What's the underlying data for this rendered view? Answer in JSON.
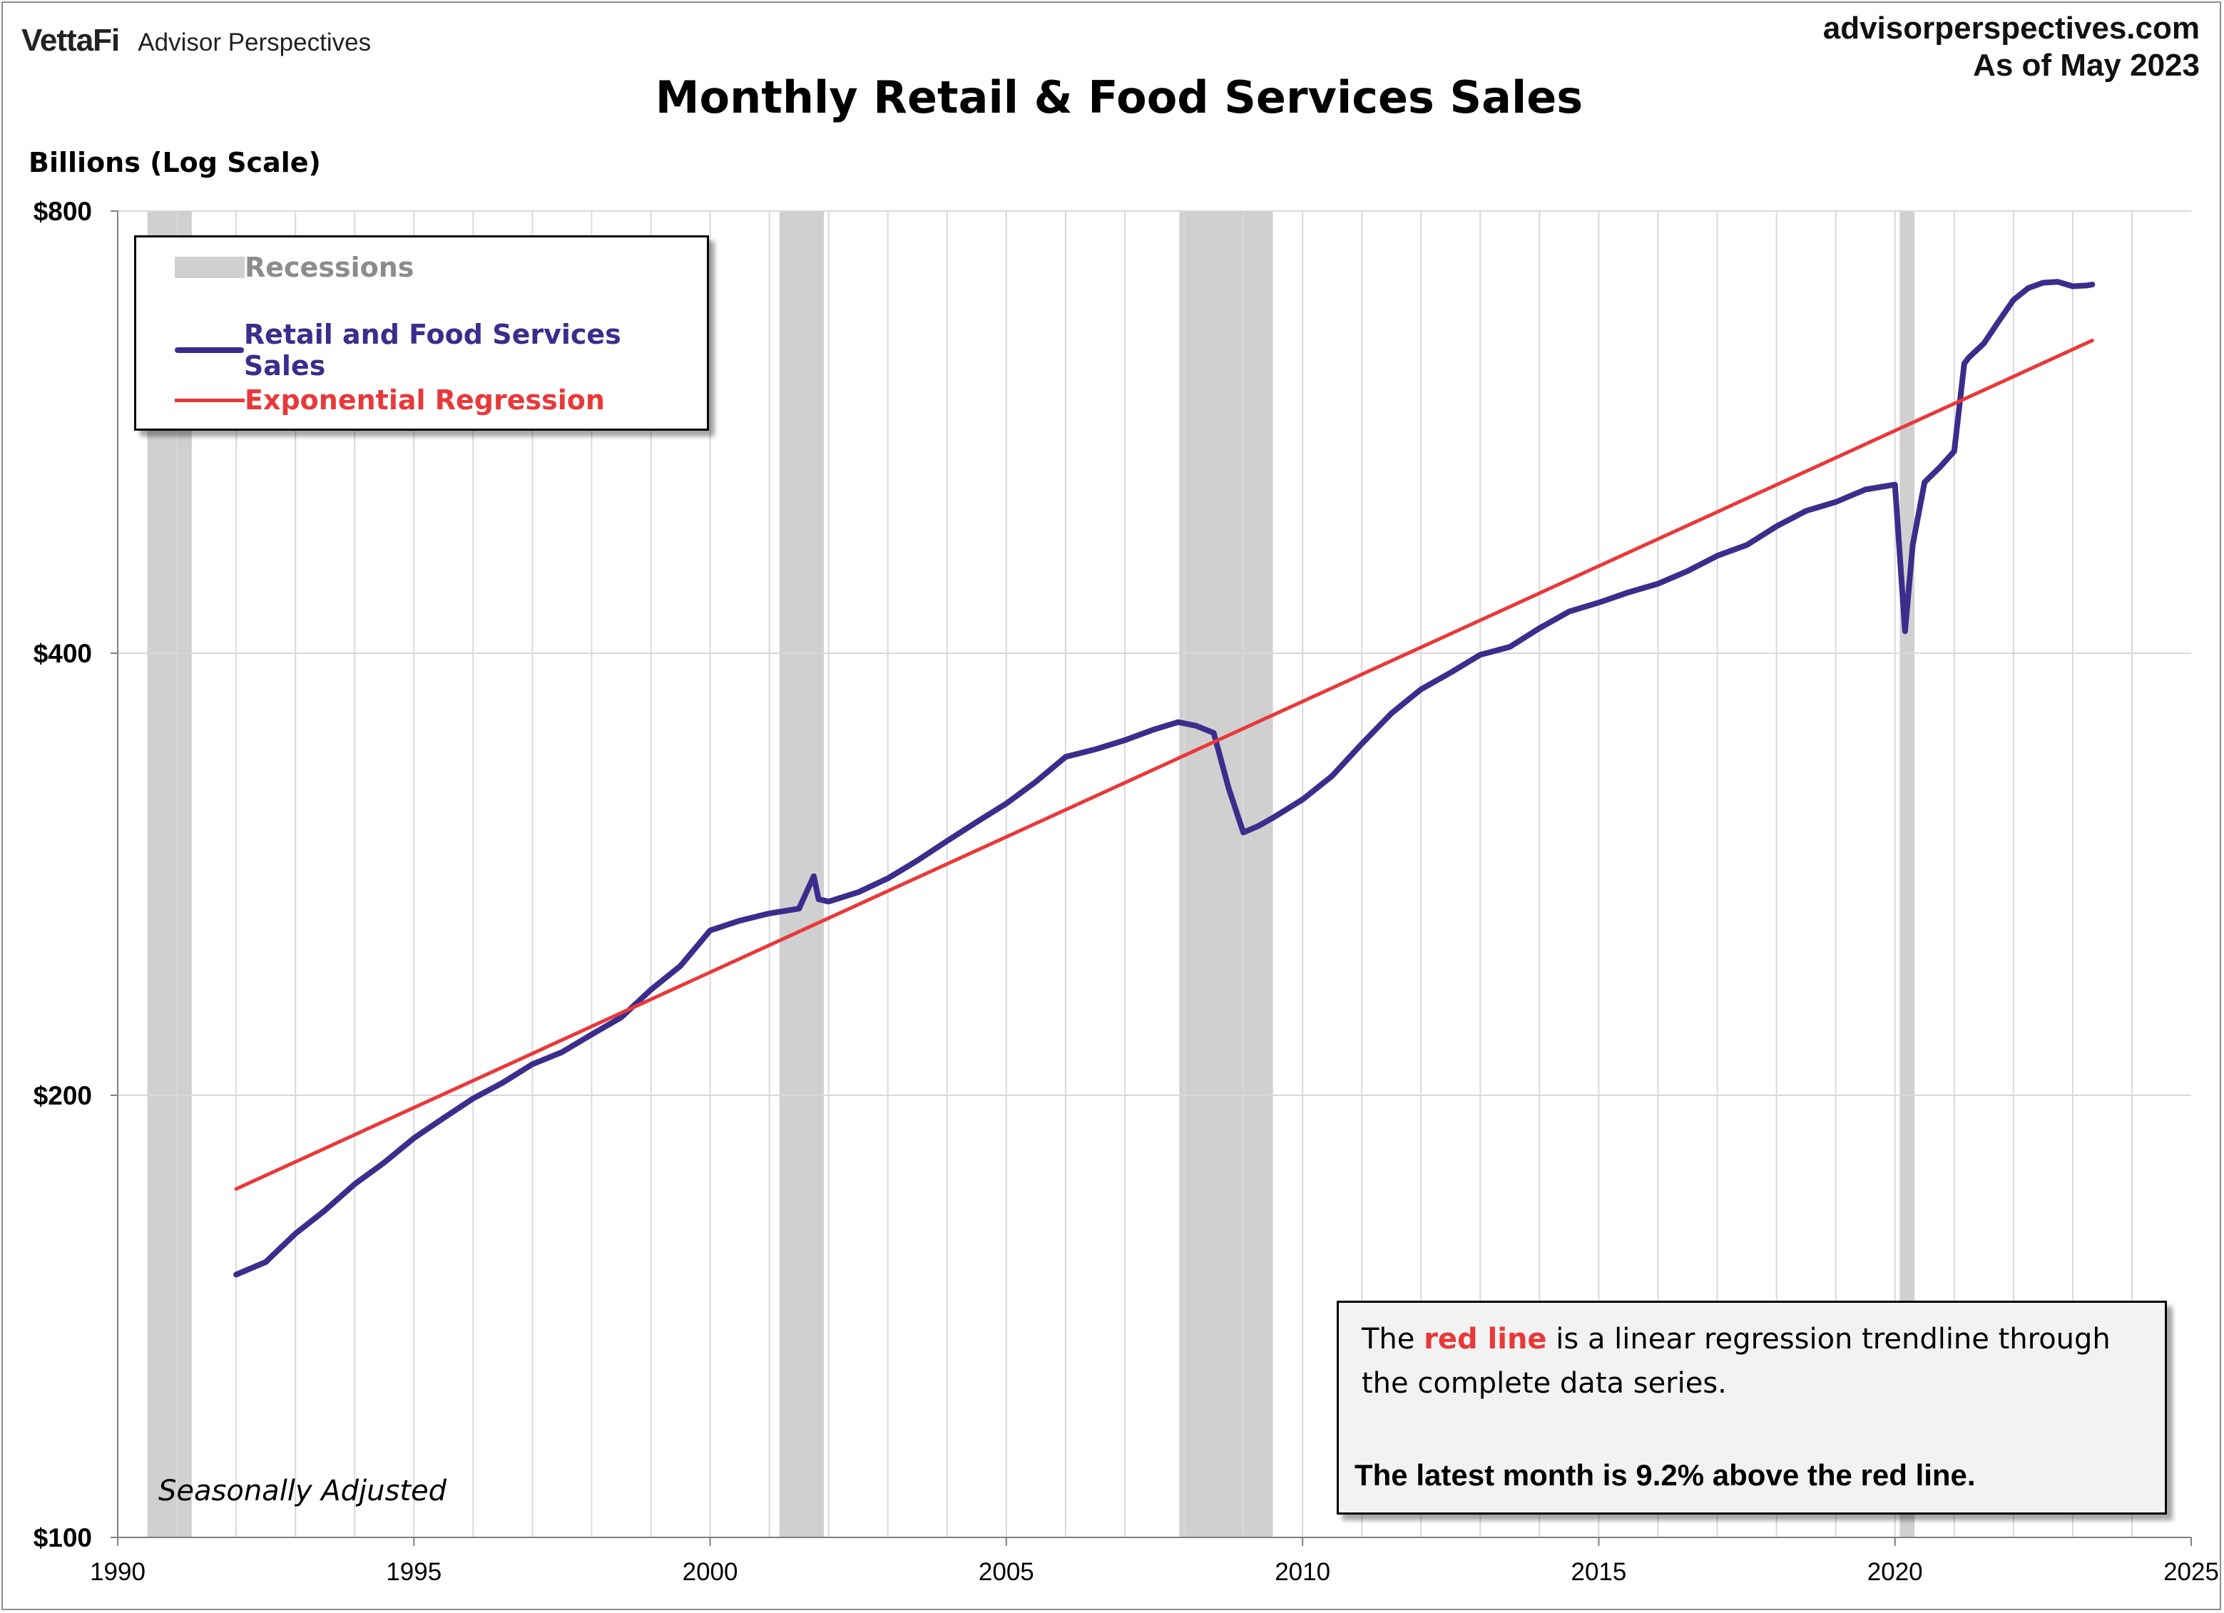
{
  "header": {
    "brand": "VettaFi",
    "brand_sub": "Advisor Perspectives",
    "site": "advisorperspectives.com",
    "as_of": "As of May 2023"
  },
  "colors": {
    "series": "#3a2d8c",
    "trend": "#e8393a",
    "recession": "#d0d0d0",
    "grid": "#d9d9d9"
  },
  "notes": {
    "seasonal": "Seasonally Adjusted",
    "box_part1": "The ",
    "box_red": "red line",
    "box_part2": " is a linear regression trendline  through the complete data series.",
    "box_latest": "The latest month is 9.2% above the red line."
  },
  "chart_data": {
    "type": "line",
    "title": "Monthly Retail & Food Services Sales",
    "ylabel": "Billions (Log Scale)",
    "xlabel": "",
    "y_scale": "log",
    "xlim": [
      1990,
      2025
    ],
    "ylim": [
      100,
      800
    ],
    "x_ticks": [
      1990,
      1995,
      2000,
      2005,
      2010,
      2015,
      2020,
      2025
    ],
    "y_ticks": [
      {
        "value": 800,
        "label": "$800"
      },
      {
        "value": 400,
        "label": "$400"
      },
      {
        "value": 200,
        "label": "$200"
      },
      {
        "value": 100,
        "label": "$100"
      }
    ],
    "grid": true,
    "legend_position": "top-left",
    "legend": [
      "Recessions",
      "Retail and Food Services Sales",
      "Exponential Regression"
    ],
    "recessions": [
      [
        1990.5,
        1991.25
      ],
      [
        2001.17,
        2001.92
      ],
      [
        2007.92,
        2009.5
      ],
      [
        2020.08,
        2020.33
      ]
    ],
    "series": [
      {
        "name": "Retail and Food Services Sales",
        "x": [
          1992.0,
          1992.5,
          1993.0,
          1993.5,
          1994.0,
          1994.5,
          1995.0,
          1995.5,
          1996.0,
          1996.5,
          1997.0,
          1997.5,
          1998.0,
          1998.5,
          1999.0,
          1999.5,
          2000.0,
          2000.5,
          2001.0,
          2001.5,
          2001.75,
          2001.83,
          2002.0,
          2002.5,
          2003.0,
          2003.5,
          2004.0,
          2004.5,
          2005.0,
          2005.5,
          2006.0,
          2006.5,
          2007.0,
          2007.5,
          2007.9,
          2008.2,
          2008.5,
          2008.75,
          2009.0,
          2009.25,
          2009.5,
          2010.0,
          2010.5,
          2011.0,
          2011.5,
          2012.0,
          2012.5,
          2013.0,
          2013.5,
          2014.0,
          2014.5,
          2015.0,
          2015.5,
          2016.0,
          2016.5,
          2017.0,
          2017.5,
          2018.0,
          2018.5,
          2019.0,
          2019.5,
          2020.0,
          2020.17,
          2020.3,
          2020.5,
          2020.75,
          2021.0,
          2021.17,
          2021.25,
          2021.5,
          2021.75,
          2022.0,
          2022.25,
          2022.5,
          2022.75,
          2023.0,
          2023.25,
          2023.33
        ],
        "values": [
          151,
          154,
          161,
          167,
          174,
          180,
          187,
          193,
          199,
          204,
          210,
          214,
          220,
          226,
          236,
          245,
          259,
          263,
          266,
          268,
          282,
          272,
          271,
          275,
          281,
          289,
          298,
          307,
          316,
          327,
          340,
          344,
          349,
          355,
          359,
          357,
          353,
          324,
          302,
          305,
          309,
          318,
          330,
          347,
          364,
          378,
          388,
          399,
          404,
          416,
          427,
          433,
          440,
          446,
          455,
          466,
          474,
          488,
          500,
          507,
          517,
          521,
          414,
          474,
          523,
          535,
          549,
          630,
          636,
          650,
          673,
          696,
          709,
          715,
          716,
          711,
          712,
          713
        ]
      },
      {
        "name": "Exponential Regression",
        "x": [
          1992.0,
          2023.33
        ],
        "values": [
          172.7,
          653.1
        ]
      }
    ]
  }
}
